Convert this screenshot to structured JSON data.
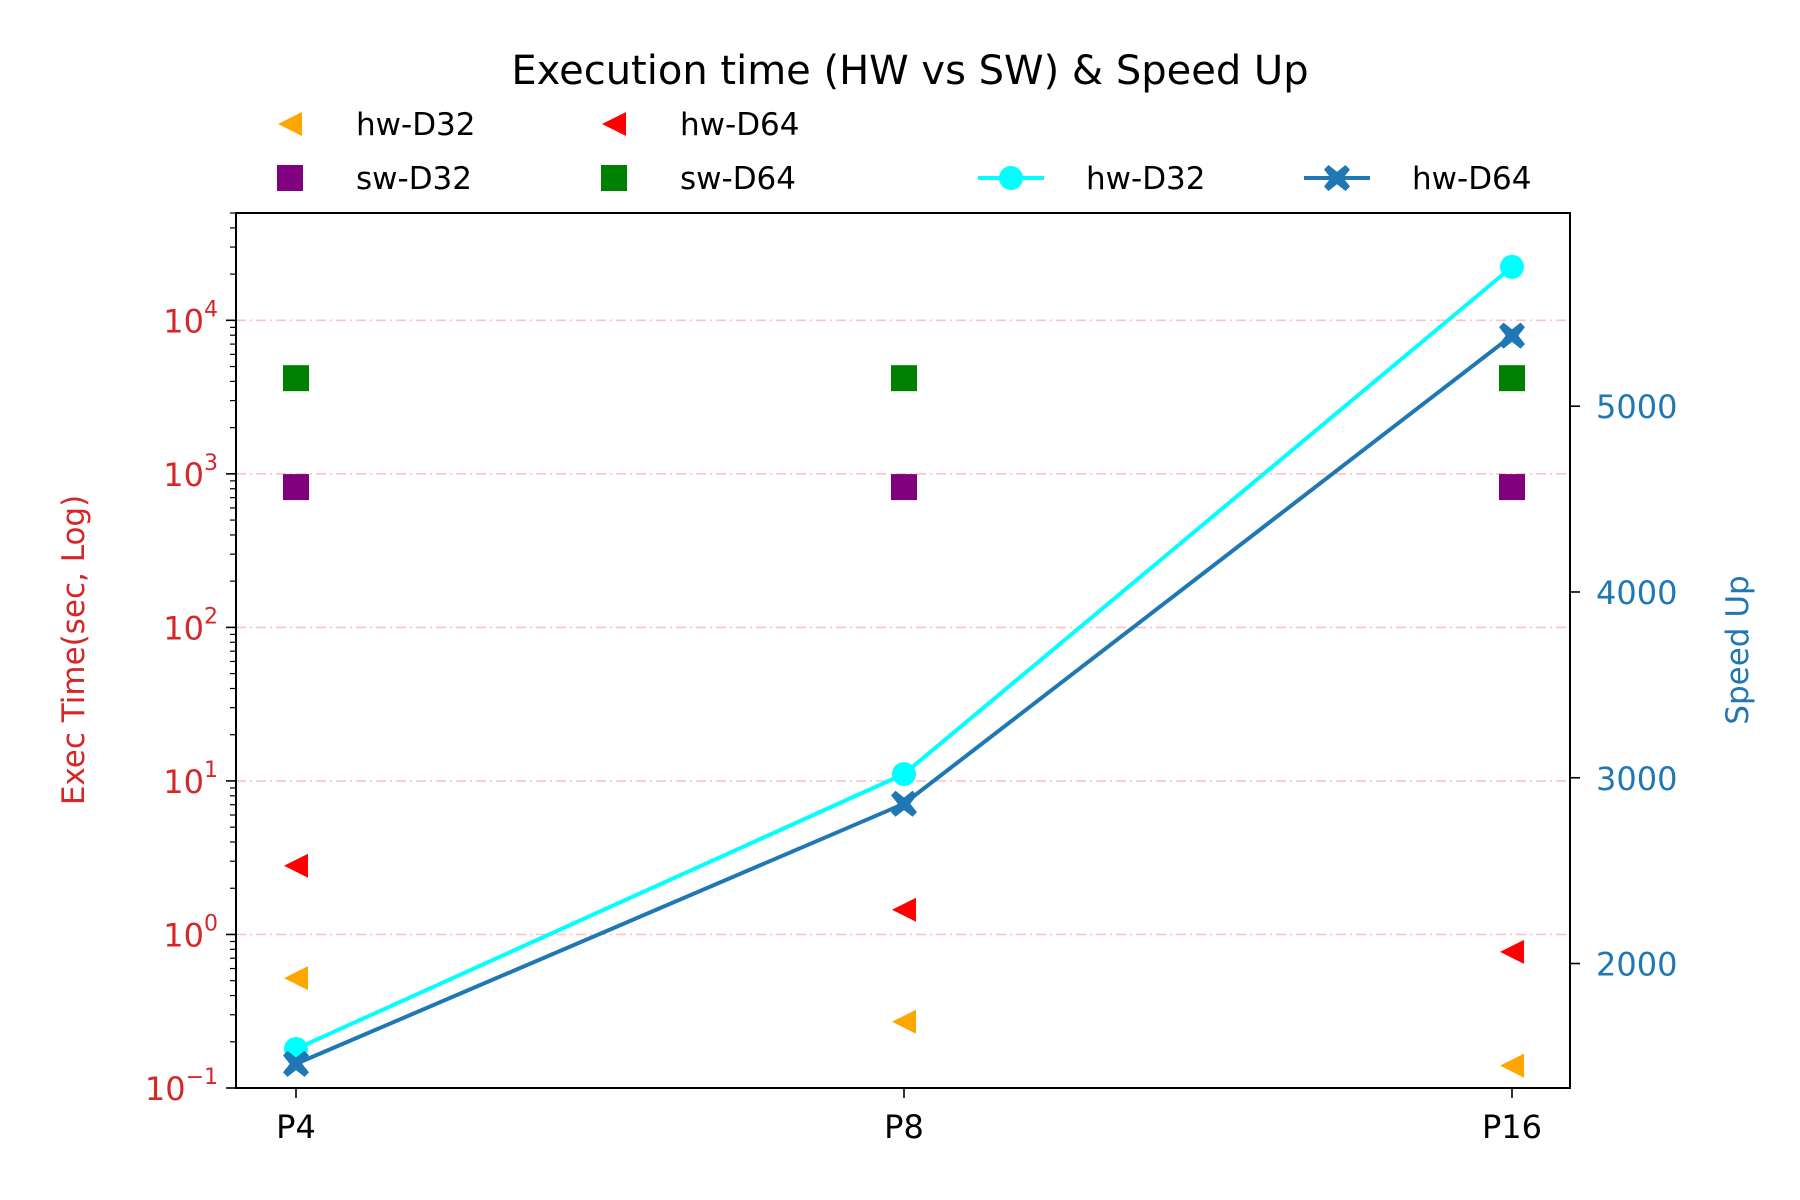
{
  "chart_data": {
    "type": "scatter+line",
    "title": "Execution time (HW vs SW) & Speed Up",
    "categories": [
      "P4",
      "P8",
      "P16"
    ],
    "y_left": {
      "label": "Exec Time(sec, Log)",
      "scale": "log",
      "range": [
        0.1,
        50000
      ],
      "ticks": [
        {
          "value": 0.1,
          "base": "10",
          "exp": "−1"
        },
        {
          "value": 1,
          "base": "10",
          "exp": "0"
        },
        {
          "value": 10,
          "base": "10",
          "exp": "1"
        },
        {
          "value": 100,
          "base": "10",
          "exp": "2"
        },
        {
          "value": 1000,
          "base": "10",
          "exp": "3"
        },
        {
          "value": 10000,
          "base": "10",
          "exp": "4"
        }
      ],
      "color": "#d62728"
    },
    "y_right": {
      "label": "Speed Up",
      "scale": "linear",
      "range": [
        1330,
        6040
      ],
      "ticks": [
        2000,
        3000,
        4000,
        5000
      ],
      "color": "#1f77b4"
    },
    "gridlines": {
      "axis": "left",
      "style": "dashdot",
      "color": "#ffc0cb"
    },
    "exec_series": [
      {
        "name": "hw-D32",
        "marker": "triangle-left",
        "color": "#ffa500",
        "values": [
          0.52,
          0.27,
          0.14
        ]
      },
      {
        "name": "hw-D64",
        "marker": "triangle-left",
        "color": "#ff0000",
        "values": [
          2.8,
          1.45,
          0.77
        ]
      },
      {
        "name": "sw-D32",
        "marker": "square",
        "color": "#800080",
        "values": [
          820,
          820,
          820
        ]
      },
      {
        "name": "sw-D64",
        "marker": "square",
        "color": "#008000",
        "values": [
          4200,
          4200,
          4200
        ]
      }
    ],
    "speedup_series": [
      {
        "name": "hw-D32",
        "marker": "circle",
        "color": "#00ffff",
        "values": [
          1540,
          3020,
          5750
        ]
      },
      {
        "name": "hw-D64",
        "marker": "x-filled",
        "color": "#1f77b4",
        "values": [
          1460,
          2860,
          5380
        ]
      }
    ],
    "legend": {
      "placement": "top"
    }
  }
}
